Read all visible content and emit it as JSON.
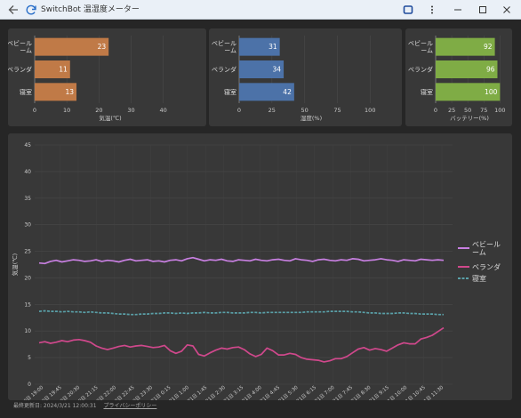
{
  "window": {
    "title": "SwitchBot 温湿度メーター",
    "back_icon": "back-arrow-icon",
    "refresh_icon": "refresh-icon",
    "extension_icon": "extension-icon",
    "menu_icon": "more-vertical-icon"
  },
  "charts_meta": {
    "temp_color": "#c07a47",
    "humidity_color": "#4c72a8",
    "battery_color": "#7fac45"
  },
  "chart_data": [
    {
      "type": "bar",
      "orientation": "horizontal",
      "categories": [
        "ベビール\nーム",
        "ベランダ",
        "寝室"
      ],
      "values": [
        23,
        11,
        13
      ],
      "xlabel": "気温(℃)",
      "xlim": [
        0,
        47
      ],
      "xticks": [
        0,
        10,
        20,
        30,
        40
      ],
      "color": "#c07a47"
    },
    {
      "type": "bar",
      "orientation": "horizontal",
      "categories": [
        "ベビール\nーム",
        "ベランダ",
        "寝室"
      ],
      "values": [
        31,
        34,
        42
      ],
      "xlabel": "湿度(%)",
      "xlim": [
        0,
        110
      ],
      "xticks": [
        0,
        25,
        50,
        75,
        100
      ],
      "color": "#4c72a8"
    },
    {
      "type": "bar",
      "orientation": "horizontal",
      "categories": [
        "ベビール\nーム",
        "ベランダ",
        "寝室"
      ],
      "values": [
        92,
        96,
        100
      ],
      "xlabel": "バッテリー(%)",
      "xlim": [
        0,
        105
      ],
      "xticks": [
        0,
        25,
        50,
        75,
        100
      ],
      "color": "#7fac45"
    },
    {
      "type": "line",
      "ylabel": "気温(℃)",
      "ylim": [
        0,
        45
      ],
      "yticks": [
        0,
        5,
        10,
        15,
        20,
        25,
        30,
        35,
        40,
        45
      ],
      "xticklabels": [
        "20日 19:00",
        "20日 19:45",
        "20日 20:30",
        "20日 21:15",
        "20日 22:00",
        "20日 22:45",
        "20日 23:30",
        "21日 0:15",
        "21日 1:00",
        "21日 1:45",
        "21日 2:30",
        "21日 3:15",
        "21日 4:00",
        "21日 4:45",
        "21日 5:30",
        "21日 6:15",
        "21日 7:00",
        "21日 7:45",
        "21日 8:30",
        "21日 9:15",
        "21日 10:00",
        "21日 10:45",
        "21日 11:30"
      ],
      "legend_position": "right",
      "series": [
        {
          "name": "ベビール\nーム",
          "color": "#c77fe0",
          "dash": "solid",
          "values": [
            22.8,
            22.7,
            23.1,
            23.3,
            23.0,
            23.2,
            23.4,
            23.3,
            23.1,
            23.2,
            23.4,
            23.1,
            23.3,
            23.2,
            23.0,
            23.3,
            23.5,
            23.2,
            23.3,
            23.4,
            23.1,
            23.2,
            23.0,
            23.3,
            23.4,
            23.2,
            23.6,
            23.8,
            23.5,
            23.2,
            23.4,
            23.3,
            23.5,
            23.2,
            23.1,
            23.4,
            23.3,
            23.2,
            23.5,
            23.3,
            23.2,
            23.4,
            23.5,
            23.3,
            23.2,
            23.6,
            23.4,
            23.3,
            23.1,
            23.4,
            23.5,
            23.3,
            23.2,
            23.4,
            23.3,
            23.6,
            23.5,
            23.2,
            23.3,
            23.4,
            23.6,
            23.4,
            23.3,
            23.1,
            23.4,
            23.3,
            23.2,
            23.5,
            23.4,
            23.3,
            23.4,
            23.3
          ]
        },
        {
          "name": "ベランダ",
          "color": "#d0488c",
          "dash": "solid",
          "values": [
            7.8,
            8.0,
            7.7,
            7.9,
            8.2,
            8.0,
            8.3,
            8.4,
            8.2,
            7.9,
            7.2,
            6.8,
            6.5,
            6.8,
            7.1,
            7.3,
            7.0,
            7.2,
            7.3,
            7.1,
            6.9,
            7.0,
            7.3,
            6.3,
            5.8,
            6.2,
            7.4,
            7.2,
            5.6,
            5.3,
            5.9,
            6.4,
            6.8,
            6.6,
            6.9,
            7.0,
            6.5,
            5.7,
            5.2,
            5.6,
            6.8,
            6.3,
            5.5,
            5.5,
            5.8,
            5.6,
            5.0,
            4.7,
            4.6,
            4.5,
            4.2,
            4.4,
            4.8,
            4.8,
            5.2,
            5.9,
            6.6,
            6.9,
            6.4,
            6.7,
            6.5,
            6.2,
            6.8,
            7.4,
            7.8,
            7.6,
            7.6,
            8.5,
            8.8,
            9.2,
            9.9,
            10.6
          ]
        },
        {
          "name": "寝室",
          "color": "#5aa0a8",
          "dash": "dashed",
          "values": [
            13.7,
            13.8,
            13.7,
            13.7,
            13.6,
            13.7,
            13.6,
            13.6,
            13.5,
            13.6,
            13.5,
            13.4,
            13.4,
            13.3,
            13.2,
            13.2,
            13.1,
            13.1,
            13.2,
            13.2,
            13.3,
            13.3,
            13.4,
            13.4,
            13.3,
            13.4,
            13.3,
            13.4,
            13.4,
            13.5,
            13.4,
            13.4,
            13.5,
            13.5,
            13.4,
            13.4,
            13.4,
            13.5,
            13.5,
            13.4,
            13.5,
            13.5,
            13.5,
            13.5,
            13.5,
            13.5,
            13.5,
            13.6,
            13.6,
            13.6,
            13.6,
            13.7,
            13.7,
            13.7,
            13.7,
            13.6,
            13.6,
            13.5,
            13.4,
            13.4,
            13.3,
            13.3,
            13.3,
            13.4,
            13.4,
            13.3,
            13.3,
            13.2,
            13.2,
            13.2,
            13.1,
            13.1
          ]
        }
      ]
    }
  ],
  "footer": {
    "updated": "最終更新日: 2024/3/21 12:00:31",
    "privacy": "プライバシーポリシー"
  }
}
